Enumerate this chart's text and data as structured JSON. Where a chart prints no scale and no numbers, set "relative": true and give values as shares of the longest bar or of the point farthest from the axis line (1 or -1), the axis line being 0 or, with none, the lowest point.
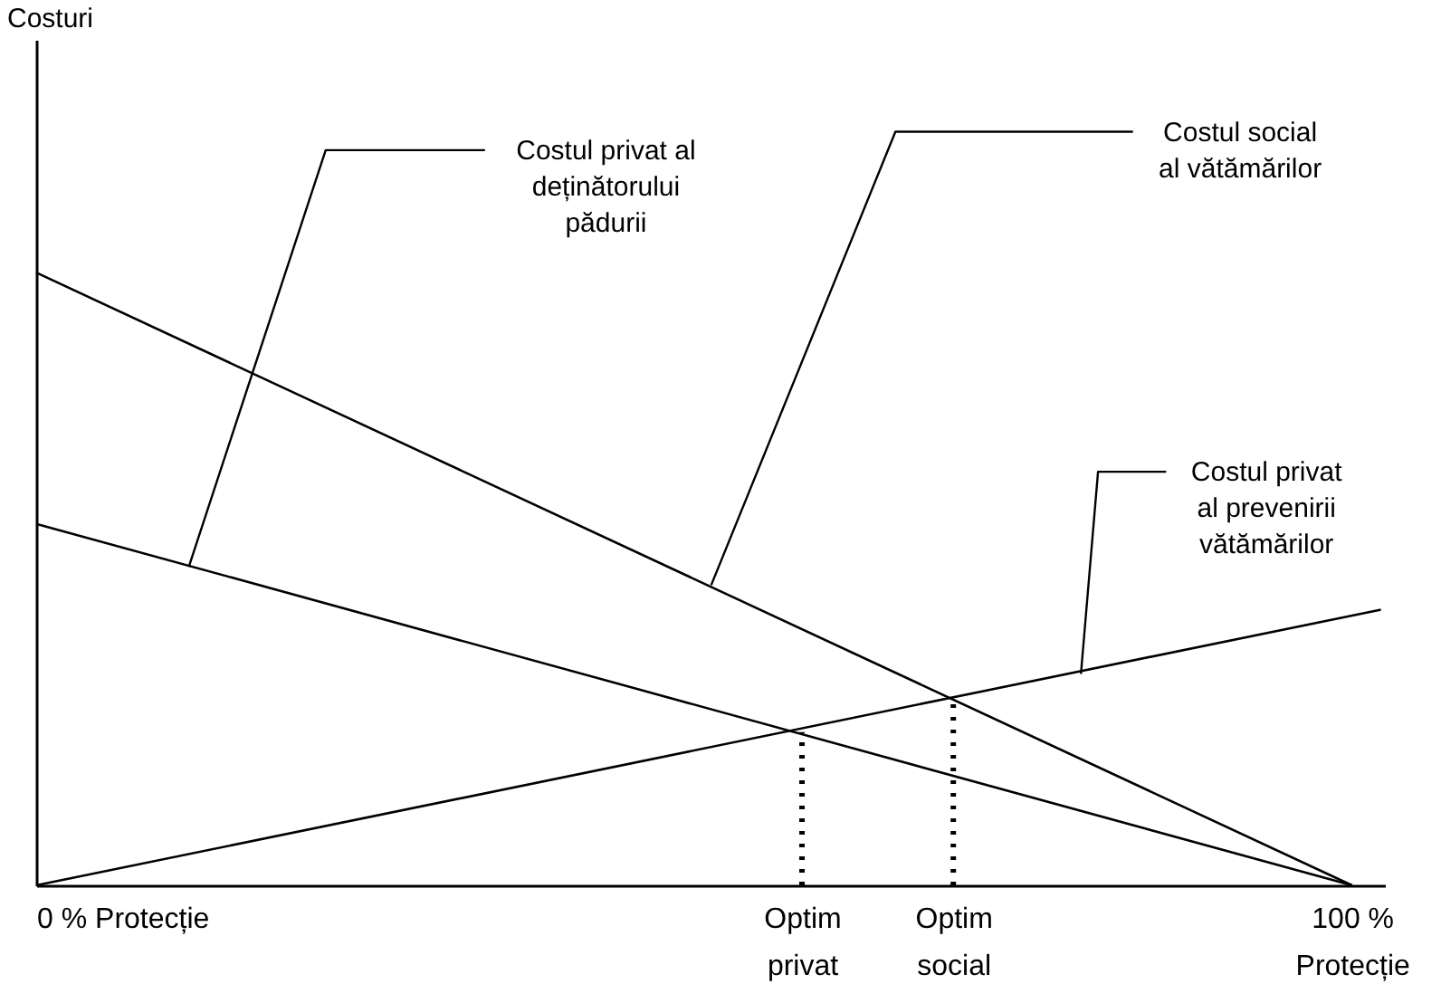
{
  "chart_data": {
    "type": "line",
    "relative": true,
    "grid": false,
    "marker": "none",
    "xlim": [
      0,
      102.5
    ],
    "xticks": [
      {
        "value": 0,
        "label": "0 % Protecție"
      },
      {
        "value": 58.2,
        "label": "Optim\nprivat"
      },
      {
        "value": 69.7,
        "label": "Optim\nsocial"
      },
      {
        "value": 100,
        "label": "100 %\nProtecție"
      }
    ],
    "series": [
      {
        "color": "#000000",
        "x": [
          0,
          100
        ],
        "values": [
          1,
          0
        ]
      },
      {
        "color": "#000000",
        "x": [
          0,
          100
        ],
        "values": [
          0.59,
          0
        ]
      },
      {
        "color": "#000000",
        "x": [
          0,
          102.2
        ],
        "values": [
          0,
          0.45
        ]
      },
      {
        "color": "#000000",
        "x": [
          58.2,
          58.2
        ],
        "values": [
          0,
          0.25
        ],
        "line_style": "dotted"
      },
      {
        "color": "#000000",
        "x": [
          69.7,
          69.7
        ],
        "values": [
          0,
          0.3
        ],
        "line_style": "dotted"
      }
    ],
    "annotations": [
      {
        "text": "Costul privat al\ndeținătorului\npădurii",
        "x": 11.6,
        "y": 0.52
      },
      {
        "text": "Costul social\nal vătămărilor",
        "x": 51.3,
        "y": 0.49
      },
      {
        "text": "Costul privat\nal prevenirii\nvătămărilor",
        "x": 79.4,
        "y": 0.345
      },
      "Costuri"
    ]
  }
}
